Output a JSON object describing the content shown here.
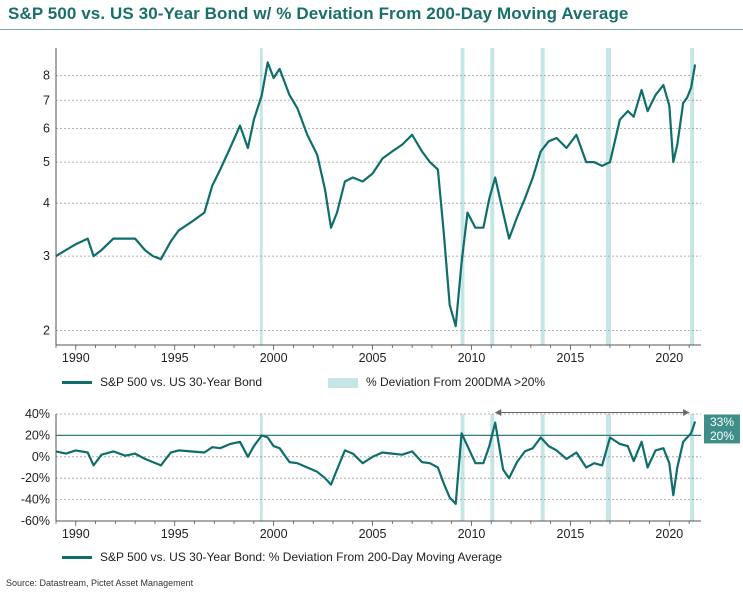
{
  "title": "S&P 500 vs. US 30-Year Bond w/ % Deviation From 200-Day Moving Average",
  "source": "Source: Datastream, Pictet Asset Management",
  "colors": {
    "line": "#0f6e6b",
    "band": "#c6e6e6",
    "grid": "#9a9a9a",
    "label_box": "#3e8f8a"
  },
  "chart_data": [
    {
      "type": "line",
      "scale": "log",
      "ylim": [
        1.85,
        9.3
      ],
      "xlim": [
        1989.0,
        2021.6
      ],
      "yticks": [
        "2",
        "3",
        "4",
        "5",
        "6",
        "7",
        "8"
      ],
      "xticks": [
        "1990",
        "1995",
        "2000",
        "2005",
        "2010",
        "2015",
        "2020"
      ],
      "grid": true,
      "legend": "bottom",
      "series": [
        {
          "name": "S&P 500 vs. US 30-Year Bond",
          "x": [
            1989.0,
            1989.5,
            1990.0,
            1990.6,
            1990.9,
            1991.3,
            1991.9,
            1992.5,
            1993.0,
            1993.5,
            1993.9,
            1994.3,
            1994.8,
            1995.2,
            1995.8,
            1996.5,
            1996.9,
            1997.3,
            1997.8,
            1998.3,
            1998.7,
            1999.0,
            1999.4,
            1999.7,
            2000.0,
            2000.3,
            2000.8,
            2001.2,
            2001.7,
            2002.2,
            2002.6,
            2002.9,
            2003.2,
            2003.6,
            2004.0,
            2004.5,
            2005.0,
            2005.5,
            2006.0,
            2006.5,
            2007.0,
            2007.5,
            2007.9,
            2008.3,
            2008.6,
            2008.9,
            2009.2,
            2009.5,
            2009.8,
            2010.2,
            2010.6,
            2010.9,
            2011.2,
            2011.6,
            2011.9,
            2012.3,
            2012.7,
            2013.1,
            2013.5,
            2013.9,
            2014.3,
            2014.8,
            2015.3,
            2015.8,
            2016.2,
            2016.6,
            2017.0,
            2017.5,
            2017.9,
            2018.2,
            2018.6,
            2018.9,
            2019.3,
            2019.7,
            2020.0,
            2020.2,
            2020.4,
            2020.7,
            2020.9,
            2021.1,
            2021.3
          ],
          "values": [
            3.0,
            3.1,
            3.2,
            3.3,
            3.0,
            3.1,
            3.3,
            3.3,
            3.3,
            3.1,
            3.0,
            2.95,
            3.25,
            3.45,
            3.6,
            3.8,
            4.4,
            4.8,
            5.4,
            6.1,
            5.4,
            6.3,
            7.2,
            8.6,
            7.9,
            8.3,
            7.2,
            6.7,
            5.8,
            5.2,
            4.3,
            3.5,
            3.8,
            4.5,
            4.6,
            4.5,
            4.7,
            5.1,
            5.3,
            5.5,
            5.8,
            5.3,
            5.0,
            4.8,
            3.4,
            2.3,
            2.05,
            2.9,
            3.8,
            3.5,
            3.5,
            4.1,
            4.6,
            3.8,
            3.3,
            3.7,
            4.1,
            4.6,
            5.3,
            5.6,
            5.7,
            5.4,
            5.8,
            5.0,
            5.0,
            4.9,
            5.0,
            6.3,
            6.6,
            6.4,
            7.4,
            6.6,
            7.2,
            7.6,
            6.8,
            5.0,
            5.5,
            6.9,
            7.1,
            7.5,
            8.5
          ]
        }
      ],
      "bands": {
        "name": "% Deviation From 200DMA >20%",
        "ranges": [
          [
            1999.3,
            1999.45
          ],
          [
            2009.45,
            2009.65
          ],
          [
            2010.95,
            2011.15
          ],
          [
            2013.5,
            2013.7
          ],
          [
            2016.8,
            2017.05
          ],
          [
            2021.05,
            2021.25
          ]
        ]
      }
    },
    {
      "type": "line",
      "ylim": [
        -60,
        40
      ],
      "xlim": [
        1989.0,
        2021.6
      ],
      "yticks": [
        "40%",
        "20%",
        "0%",
        "-20%",
        "-40%",
        "-60%"
      ],
      "xticks": [
        "1990",
        "1995",
        "2000",
        "2005",
        "2010",
        "2015",
        "2020"
      ],
      "grid": true,
      "legend": "bottom",
      "threshold": {
        "value": 20,
        "label": "20%"
      },
      "annotation": {
        "value": 33,
        "label": "33%",
        "arrow_x": [
          2011.2,
          2021.0
        ]
      },
      "series": [
        {
          "name": "S&P 500 vs. US 30-Year Bond: % Deviation From 200-Day Moving Average",
          "x": [
            1989.0,
            1989.5,
            1990.0,
            1990.6,
            1990.9,
            1991.3,
            1991.9,
            1992.5,
            1993.0,
            1993.5,
            1993.9,
            1994.3,
            1994.8,
            1995.2,
            1995.8,
            1996.5,
            1996.9,
            1997.3,
            1997.8,
            1998.3,
            1998.7,
            1999.0,
            1999.4,
            1999.7,
            2000.0,
            2000.3,
            2000.8,
            2001.2,
            2001.7,
            2002.2,
            2002.6,
            2002.9,
            2003.2,
            2003.6,
            2004.0,
            2004.5,
            2005.0,
            2005.5,
            2006.0,
            2006.5,
            2007.0,
            2007.5,
            2007.9,
            2008.3,
            2008.6,
            2008.9,
            2009.2,
            2009.5,
            2009.8,
            2010.2,
            2010.6,
            2010.9,
            2011.2,
            2011.6,
            2011.9,
            2012.3,
            2012.7,
            2013.1,
            2013.5,
            2013.9,
            2014.3,
            2014.8,
            2015.3,
            2015.8,
            2016.2,
            2016.6,
            2017.0,
            2017.5,
            2017.9,
            2018.2,
            2018.6,
            2018.9,
            2019.3,
            2019.7,
            2020.0,
            2020.2,
            2020.4,
            2020.7,
            2020.9,
            2021.1,
            2021.3
          ],
          "values": [
            5,
            3,
            6,
            4,
            -8,
            2,
            5,
            1,
            3,
            -2,
            -5,
            -8,
            4,
            6,
            5,
            4,
            9,
            8,
            12,
            14,
            0,
            10,
            20,
            18,
            10,
            8,
            -5,
            -6,
            -10,
            -14,
            -20,
            -26,
            -12,
            6,
            3,
            -6,
            0,
            4,
            3,
            2,
            5,
            -5,
            -6,
            -10,
            -25,
            -38,
            -44,
            22,
            10,
            -6,
            -6,
            10,
            32,
            -12,
            -20,
            -5,
            5,
            8,
            18,
            10,
            6,
            -2,
            4,
            -10,
            -6,
            -8,
            18,
            12,
            10,
            -4,
            14,
            -10,
            6,
            8,
            -6,
            -36,
            -10,
            14,
            18,
            22,
            33
          ]
        }
      ],
      "bands": {
        "ranges": [
          [
            1999.3,
            1999.45
          ],
          [
            2009.45,
            2009.65
          ],
          [
            2010.95,
            2011.15
          ],
          [
            2013.5,
            2013.7
          ],
          [
            2016.8,
            2017.05
          ],
          [
            2021.05,
            2021.25
          ]
        ]
      }
    }
  ]
}
